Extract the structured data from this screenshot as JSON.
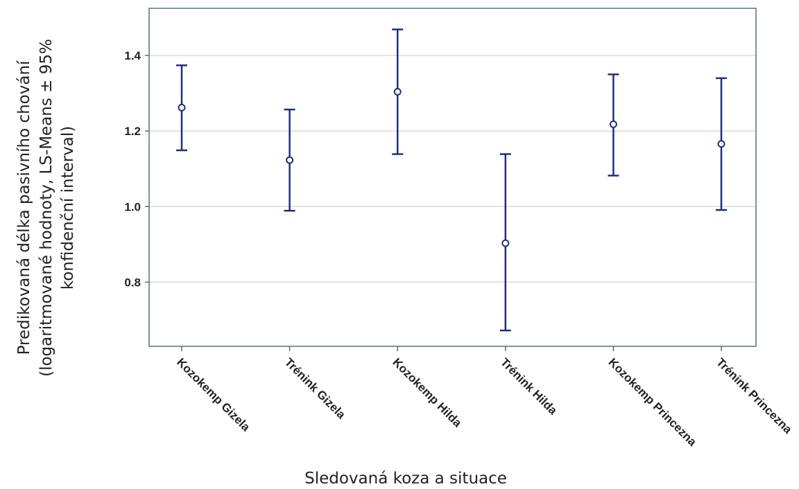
{
  "chart_data": {
    "type": "scatter",
    "title": "",
    "xlabel": "Sledovaná koza a situace",
    "ylabel_lines": [
      "Predikovaná délka pasivního chování",
      "(logaritmované hodnoty, LS-Means ± 95%",
      "konfidenční interval)"
    ],
    "categories": [
      "Kozokemp Gizela",
      "Trénink Gizela",
      "Kozokemp Hilda",
      "Trénink Hilda",
      "Kozokemp Princezna",
      "Trénink Princezna"
    ],
    "means": [
      1.262,
      1.123,
      1.304,
      0.903,
      1.218,
      1.166
    ],
    "lower": [
      1.149,
      0.989,
      1.139,
      0.672,
      1.082,
      0.991
    ],
    "upper": [
      1.374,
      1.257,
      1.469,
      1.139,
      1.35,
      1.34
    ],
    "ylim": [
      0.63,
      1.525
    ],
    "yticks": [
      0.8,
      1.0,
      1.2,
      1.4
    ],
    "ytick_labels": [
      "0.8",
      "1.0",
      "1.2",
      "1.4"
    ],
    "grid": true,
    "colors": {
      "marker": "#1f2f7a",
      "grid": "#d9d9d9",
      "frame": "#5a6e7a"
    }
  }
}
